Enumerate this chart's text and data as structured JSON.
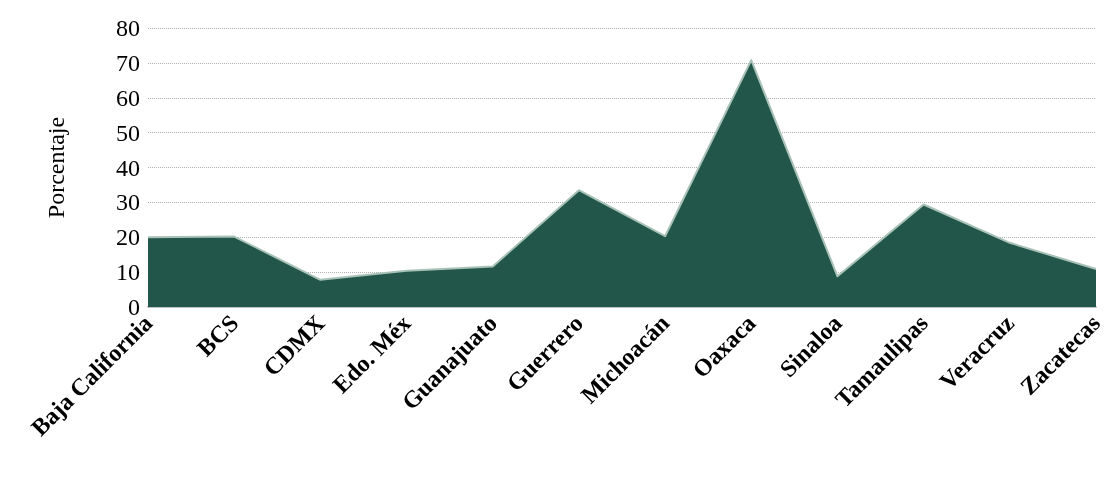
{
  "chart_data": {
    "type": "area",
    "ylabel": "Porcentaje",
    "categories": [
      "Baja California",
      "BCS",
      "CDMX",
      "Edo. Méx",
      "Guanajuato",
      "Guerrero",
      "Michoacán",
      "Oaxaca",
      "Sinaloa",
      "Tamaulipas",
      "Veracruz",
      "Zacatecas"
    ],
    "series": [
      {
        "color": "#23564a",
        "values": [
          20,
          20.2,
          7.8,
          10.4,
          11.6,
          33.5,
          20.3,
          70.8,
          8.8,
          29.4,
          18.4,
          10.9
        ]
      }
    ],
    "ylim": [
      0,
      80
    ],
    "yticks": [
      0,
      10,
      20,
      30,
      40,
      50,
      60,
      70,
      80
    ],
    "grid": "y",
    "marker": "none",
    "line_style": "solid"
  }
}
